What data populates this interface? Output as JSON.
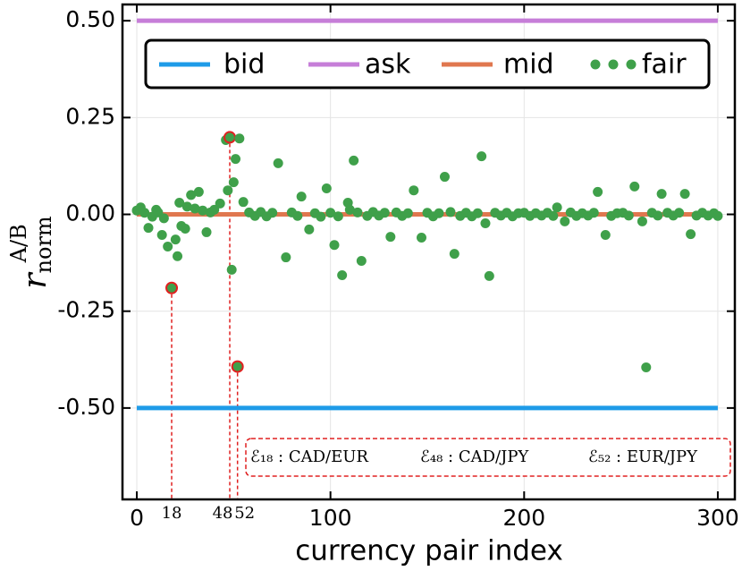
{
  "chart_data": {
    "type": "line",
    "xlabel": "currency pair index",
    "ylabel": {
      "base": "r",
      "sub": "norm",
      "sup": "A/B"
    },
    "xlim": [
      -7.4,
      308.8
    ],
    "ylim": [
      -0.736,
      0.542
    ],
    "xticks": [
      0,
      100,
      200,
      300
    ],
    "yticks": [
      {
        "value": 0.5,
        "label": "0.50"
      },
      {
        "value": 0.25,
        "label": "0.25"
      },
      {
        "value": 0,
        "label": "0.00"
      },
      {
        "value": -0.25,
        "label": "-0.25"
      },
      {
        "value": -0.5,
        "label": "-0.50"
      }
    ],
    "grid": true,
    "legend": "top",
    "highlight": [
      18,
      48,
      52
    ],
    "highlight_color": "#e02020",
    "annotations": [
      "ℰ₁₈ : CAD/EUR",
      "ℰ₄₈ : CAD/JPY",
      "ℰ₅₂ : EUR/JPY"
    ],
    "series": [
      {
        "name": "bid",
        "type": "line",
        "color": "#1e9be8",
        "x": [
          0,
          300
        ],
        "values": [
          -0.5,
          -0.5
        ]
      },
      {
        "name": "ask",
        "type": "line",
        "color": "#c67ed8",
        "x": [
          0,
          300
        ],
        "values": [
          0.5,
          0.5
        ]
      },
      {
        "name": "mid",
        "type": "line",
        "color": "#e0774f",
        "x": [
          0,
          300
        ],
        "values": [
          0,
          0
        ]
      },
      {
        "name": "fair",
        "type": "scatter",
        "color": "#3fa04a",
        "x": [
          2,
          6,
          13,
          16,
          18,
          20,
          21,
          22,
          23,
          25,
          28,
          32,
          36,
          43,
          46,
          47,
          48,
          49,
          50,
          51,
          52,
          53,
          55,
          73,
          77,
          85,
          89,
          98,
          102,
          106,
          109,
          112,
          116,
          131,
          143,
          147,
          159,
          164,
          178,
          180,
          182,
          217,
          221,
          238,
          242,
          257,
          261,
          263,
          271,
          283,
          286,
          0,
          4,
          8,
          10,
          11,
          14,
          26,
          30,
          34,
          38,
          40,
          58,
          61,
          64,
          67,
          70,
          80,
          83,
          92,
          95,
          100,
          104,
          110,
          114,
          119,
          122,
          125,
          128,
          134,
          137,
          140,
          150,
          153,
          156,
          162,
          167,
          170,
          173,
          176,
          185,
          188,
          191,
          194,
          197,
          200,
          203,
          206,
          209,
          212,
          215,
          224,
          227,
          230,
          233,
          236,
          245,
          248,
          251,
          254,
          266,
          269,
          274,
          277,
          280,
          289,
          292,
          295,
          298,
          300
        ],
        "values": [
          0.018,
          -0.035,
          -0.053,
          -0.083,
          -0.19,
          -0.065,
          -0.108,
          0.03,
          -0.03,
          -0.037,
          0.05,
          0.058,
          -0.046,
          0.028,
          0.192,
          0.062,
          0.199,
          -0.143,
          0.083,
          0.143,
          -0.393,
          0.196,
          0.032,
          0.132,
          -0.111,
          0.046,
          -0.039,
          0.067,
          -0.079,
          -0.157,
          0.03,
          0.139,
          -0.12,
          -0.058,
          0.062,
          -0.06,
          0.097,
          -0.102,
          0.15,
          -0.023,
          -0.159,
          0.018,
          -0.018,
          0.058,
          -0.053,
          0.072,
          -0.018,
          -0.395,
          0.053,
          0.053,
          -0.051,
          0.01,
          0.004,
          -0.006,
          0.012,
          0.005,
          -0.01,
          0.02,
          0.015,
          0.01,
          0.005,
          0.012,
          0.005,
          -0.004,
          0.006,
          -0.005,
          0.004,
          0.005,
          -0.004,
          0.003,
          -0.006,
          0.004,
          -0.005,
          0.012,
          0.005,
          -0.004,
          0.006,
          -0.003,
          0.004,
          0.005,
          -0.004,
          0.003,
          0.004,
          -0.005,
          0.003,
          0.006,
          -0.004,
          0.004,
          -0.005,
          0.003,
          0.004,
          -0.003,
          0.004,
          -0.005,
          0.003,
          0.004,
          -0.004,
          0.003,
          -0.003,
          0.004,
          -0.004,
          0.005,
          -0.004,
          0.003,
          -0.003,
          0.004,
          -0.004,
          0.003,
          0.004,
          -0.003,
          0.004,
          -0.003,
          0.004,
          -0.003,
          0.004,
          -0.003,
          0.004,
          -0.003,
          0.003,
          -0.004
        ]
      }
    ]
  }
}
